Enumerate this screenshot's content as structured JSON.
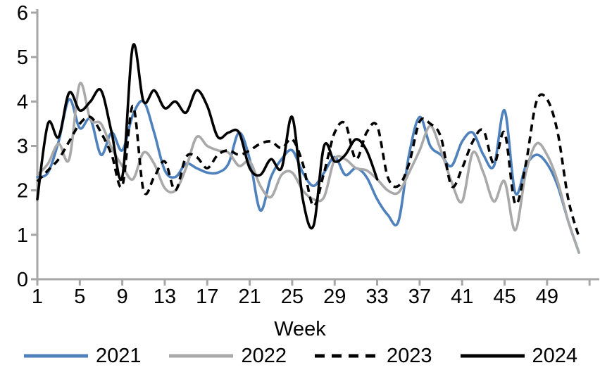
{
  "chart_data": {
    "type": "line",
    "title": "",
    "xlabel": "Week",
    "ylabel": "",
    "xlim": [
      1,
      53
    ],
    "ylim": [
      0,
      6
    ],
    "y_ticks": [
      0,
      1,
      2,
      3,
      4,
      5,
      6
    ],
    "x_ticks": [
      1,
      5,
      9,
      13,
      17,
      21,
      25,
      29,
      33,
      37,
      41,
      45,
      49
    ],
    "x_end_tick": 53,
    "grid": false,
    "legend_position": "bottom",
    "axis_color": "#a6a6a6",
    "x_start_week": 1,
    "series": [
      {
        "name": "2021",
        "color": "#4f81bd",
        "style": "solid",
        "values": [
          2.3,
          2.4,
          3.1,
          4.05,
          3.4,
          3.6,
          2.8,
          3.3,
          2.9,
          3.7,
          4.0,
          3.3,
          2.45,
          2.3,
          2.6,
          2.5,
          2.4,
          2.4,
          2.6,
          3.3,
          2.7,
          1.55,
          2.3,
          2.7,
          2.9,
          2.4,
          2.1,
          2.4,
          2.75,
          2.35,
          2.5,
          2.3,
          1.8,
          1.45,
          1.3,
          2.8,
          3.65,
          3.0,
          2.8,
          2.55,
          3.1,
          3.3,
          2.8,
          2.55,
          3.8,
          1.95,
          2.55,
          2.8,
          2.6,
          2.1,
          1.3,
          0.6
        ]
      },
      {
        "name": "2022",
        "color": "#a9a9a9",
        "style": "solid",
        "values": [
          2.35,
          2.6,
          3.05,
          2.7,
          4.4,
          3.6,
          3.5,
          2.95,
          2.55,
          2.25,
          2.85,
          2.6,
          2.05,
          2.0,
          2.5,
          3.2,
          3.0,
          2.9,
          2.85,
          2.55,
          2.65,
          2.1,
          1.85,
          2.35,
          2.4,
          2.0,
          1.8,
          1.85,
          2.7,
          2.7,
          2.5,
          2.45,
          2.25,
          2.0,
          1.95,
          2.4,
          2.9,
          3.45,
          2.9,
          2.2,
          1.75,
          2.85,
          2.4,
          1.75,
          2.2,
          1.1,
          2.4,
          3.05,
          2.8,
          2.2,
          1.3,
          0.6
        ]
      },
      {
        "name": "2023",
        "color": "#000000",
        "style": "dashed",
        "values": [
          2.2,
          2.45,
          2.7,
          3.1,
          3.5,
          3.65,
          3.3,
          2.8,
          2.1,
          3.9,
          2.0,
          2.3,
          2.65,
          2.0,
          2.75,
          2.75,
          2.5,
          2.8,
          2.9,
          2.8,
          2.9,
          3.05,
          3.1,
          2.95,
          3.15,
          2.6,
          1.65,
          2.4,
          3.3,
          3.5,
          2.7,
          3.3,
          3.45,
          2.3,
          2.1,
          2.6,
          3.55,
          3.5,
          3.2,
          2.1,
          2.5,
          3.1,
          3.35,
          2.6,
          3.3,
          1.7,
          2.6,
          4.0,
          4.05,
          3.3,
          1.8,
          0.95
        ]
      },
      {
        "name": "2024",
        "color": "#000000",
        "style": "solid",
        "values": [
          1.8,
          3.5,
          3.2,
          4.2,
          3.8,
          4.0,
          4.25,
          3.3,
          2.3,
          5.25,
          4.0,
          4.25,
          3.85,
          4.0,
          3.75,
          4.25,
          3.9,
          3.2,
          3.3,
          3.3,
          2.5,
          2.35,
          2.7,
          2.5,
          3.65,
          1.8,
          1.2,
          3.0,
          2.65,
          2.8,
          3.15,
          2.9,
          2.25
        ]
      }
    ]
  }
}
